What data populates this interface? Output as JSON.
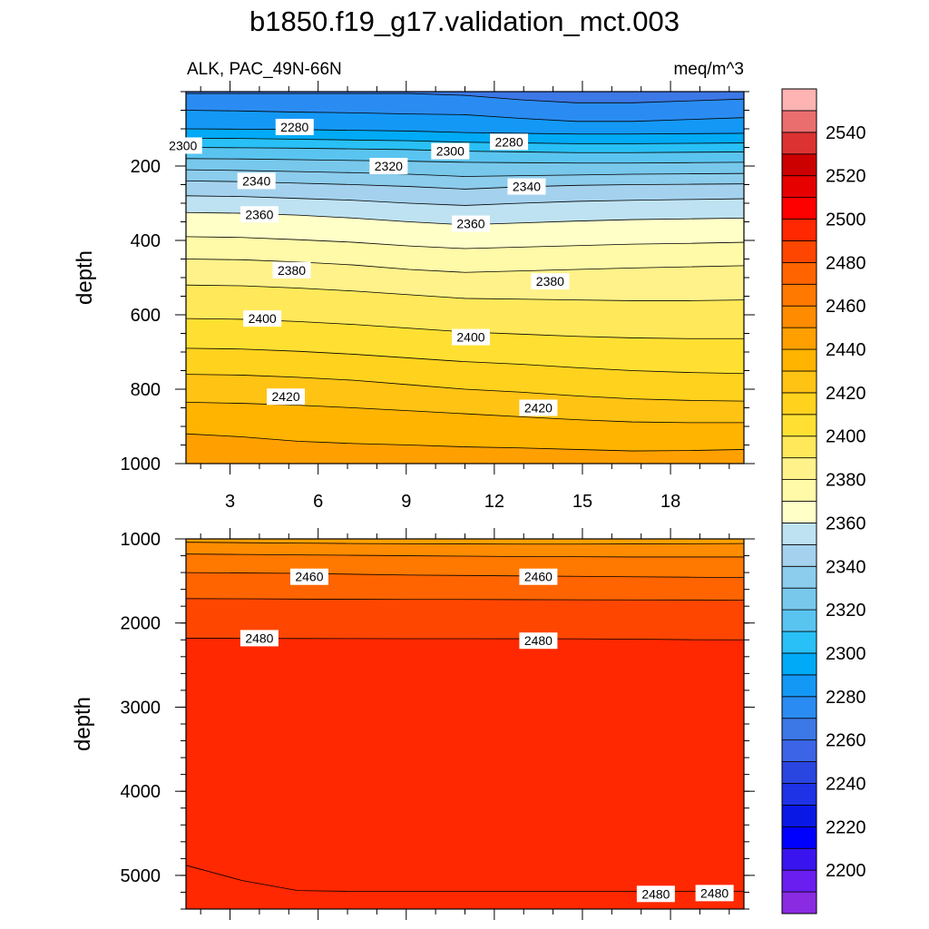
{
  "chart_data": {
    "type": "contour",
    "title": "b1850.f19_g17.validation_mct.003",
    "subtitle_left": "ALK, PAC_49N-66N",
    "subtitle_right": "meq/m^3",
    "x_ticks": [
      "3",
      "6",
      "9",
      "12",
      "15",
      "18"
    ],
    "x_tick_values": [
      3,
      6,
      9,
      12,
      15,
      18
    ],
    "x_range": [
      1.5,
      20.5
    ],
    "ylabel": "depth",
    "levels": [
      2190,
      2200,
      2210,
      2220,
      2230,
      2240,
      2250,
      2260,
      2270,
      2280,
      2290,
      2300,
      2310,
      2320,
      2330,
      2340,
      2350,
      2360,
      2370,
      2380,
      2390,
      2400,
      2410,
      2420,
      2430,
      2440,
      2450,
      2460,
      2470,
      2480,
      2490,
      2500,
      2510,
      2520,
      2530,
      2540,
      2550,
      2560
    ],
    "colors": [
      "#8a2be2",
      "#6a1ef0",
      "#3a14ee",
      "#0000ff",
      "#0a18e6",
      "#1e32e6",
      "#2a46e0",
      "#3c64e6",
      "#3c78e6",
      "#2a8cf2",
      "#1498f6",
      "#00aaf6",
      "#28c0f6",
      "#5ac4f0",
      "#78c8ec",
      "#8cccec",
      "#a4d2ee",
      "#bee2f2",
      "#ffffc8",
      "#fffaa8",
      "#fff28a",
      "#ffe85a",
      "#ffe032",
      "#ffd21e",
      "#ffc314",
      "#ffb400",
      "#ffa000",
      "#ff8c00",
      "#ff7800",
      "#ff6400",
      "#ff4600",
      "#ff2800",
      "#ff0000",
      "#e60000",
      "#cd0000",
      "#dc3232",
      "#eb6e6e",
      "#ffb4b4"
    ],
    "colorbar_labels": [
      "2200",
      "2220",
      "2240",
      "2260",
      "2280",
      "2300",
      "2320",
      "2340",
      "2360",
      "2380",
      "2400",
      "2420",
      "2440",
      "2460",
      "2480",
      "2500",
      "2520",
      "2540"
    ],
    "panels": [
      {
        "name": "upper",
        "y_range": [
          0,
          1000
        ],
        "y_ticks": [
          "200",
          "400",
          "600",
          "800",
          "1000"
        ],
        "y_tick_values": [
          200,
          400,
          600,
          800,
          1000
        ],
        "contours": [
          {
            "level": 2270,
            "depths": [
              5,
              5,
              5,
              5,
              5,
              10,
              22,
              30,
              30,
              25,
              20
            ]
          },
          {
            "level": 2280,
            "depths": [
              50,
              52,
              55,
              57,
              60,
              62,
              72,
              80,
              80,
              75,
              70
            ]
          },
          {
            "level": 2290,
            "depths": [
              100,
              101,
              102,
              104,
              106,
              110,
              112,
              114,
              114,
              113,
              112
            ]
          },
          {
            "level": 2300,
            "depths": [
              125,
              126,
              128,
              130,
              132,
              136,
              138,
              140,
              140,
              139,
              138
            ]
          },
          {
            "level": 2310,
            "depths": [
              150,
              151,
              152,
              154,
              156,
              160,
              162,
              164,
              164,
              163,
              162
            ]
          },
          {
            "level": 2320,
            "depths": [
              180,
              181,
              183,
              185,
              187,
              190,
              191,
              192,
              192,
              191,
              190
            ]
          },
          {
            "level": 2330,
            "depths": [
              210,
              212,
              215,
              218,
              222,
              228,
              226,
              224,
              222,
              221,
              220
            ]
          },
          {
            "level": 2340,
            "depths": [
              240,
              242,
              246,
              250,
              255,
              262,
              256,
              252,
              250,
              249,
              248
            ]
          },
          {
            "level": 2350,
            "depths": [
              280,
              282,
              287,
              292,
              300,
              306,
              300,
              295,
              292,
              290,
              288
            ]
          },
          {
            "level": 2360,
            "depths": [
              325,
              327,
              332,
              340,
              350,
              358,
              353,
              348,
              344,
              342,
              340
            ]
          },
          {
            "level": 2370,
            "depths": [
              390,
              392,
              398,
              405,
              415,
              422,
              418,
              414,
              410,
              408,
              405
            ]
          },
          {
            "level": 2380,
            "depths": [
              450,
              452,
              458,
              466,
              478,
              486,
              482,
              478,
              474,
              471,
              468
            ]
          },
          {
            "level": 2390,
            "depths": [
              520,
              522,
              528,
              536,
              546,
              556,
              558,
              560,
              562,
              562,
              560
            ]
          },
          {
            "level": 2400,
            "depths": [
              610,
              612,
              618,
              626,
              636,
              646,
              652,
              658,
              662,
              664,
              664
            ]
          },
          {
            "level": 2410,
            "depths": [
              690,
              692,
              698,
              706,
              716,
              726,
              733,
              742,
              750,
              755,
              758
            ]
          },
          {
            "level": 2420,
            "depths": [
              760,
              762,
              768,
              776,
              788,
              800,
              808,
              818,
              826,
              830,
              832
            ]
          },
          {
            "level": 2430,
            "depths": [
              835,
              838,
              843,
              850,
              858,
              866,
              874,
              882,
              888,
              890,
              890
            ]
          },
          {
            "level": 2440,
            "depths": [
              920,
              928,
              940,
              946,
              950,
              955,
              958,
              962,
              966,
              965,
              962
            ]
          }
        ],
        "contour_labels": [
          {
            "text": "2280",
            "x": 5.2,
            "depth": 95
          },
          {
            "text": "2300",
            "x": 1.4,
            "depth": 145
          },
          {
            "text": "2300",
            "x": 10.5,
            "depth": 160
          },
          {
            "text": "2280",
            "x": 12.5,
            "depth": 135
          },
          {
            "text": "2320",
            "x": 8.4,
            "depth": 200
          },
          {
            "text": "2340",
            "x": 3.9,
            "depth": 240
          },
          {
            "text": "2340",
            "x": 13.1,
            "depth": 255
          },
          {
            "text": "2360",
            "x": 4.0,
            "depth": 330
          },
          {
            "text": "2360",
            "x": 11.2,
            "depth": 355
          },
          {
            "text": "2380",
            "x": 5.1,
            "depth": 480
          },
          {
            "text": "2380",
            "x": 13.9,
            "depth": 510
          },
          {
            "text": "2400",
            "x": 4.1,
            "depth": 610
          },
          {
            "text": "2400",
            "x": 11.2,
            "depth": 660
          },
          {
            "text": "2420",
            "x": 4.9,
            "depth": 820
          },
          {
            "text": "2420",
            "x": 13.5,
            "depth": 850
          }
        ]
      },
      {
        "name": "lower",
        "y_range": [
          1000,
          5400
        ],
        "y_ticks": [
          "1000",
          "2000",
          "3000",
          "4000",
          "5000"
        ],
        "y_tick_values": [
          1000,
          2000,
          3000,
          4000,
          5000
        ],
        "contours": [
          {
            "level": 2450,
            "depths": [
              1040,
              1045,
              1050,
              1055,
              1058,
              1060,
              1062,
              1062,
              1060,
              1058,
              1055
            ]
          },
          {
            "level": 2460,
            "depths": [
              1180,
              1185,
              1190,
              1195,
              1200,
              1205,
              1210,
              1212,
              1215,
              1215,
              1215
            ]
          },
          {
            "level": 2470,
            "depths": [
              1400,
              1405,
              1410,
              1420,
              1430,
              1435,
              1440,
              1445,
              1450,
              1455,
              1460
            ]
          },
          {
            "level": 2480,
            "depths": [
              1710,
              1712,
              1715,
              1718,
              1720,
              1720,
              1722,
              1724,
              1725,
              1726,
              1728
            ]
          },
          {
            "level": 2490,
            "depths": [
              2180,
              2182,
              2184,
              2185,
              2186,
              2186,
              2187,
              2188,
              2192,
              2198,
              2200
            ]
          },
          {
            "level": 2495,
            "depths": [
              4880,
              5060,
              5180,
              5190,
              5190,
              5190,
              5190,
              5190,
              5190,
              5190,
              5190
            ]
          }
        ],
        "contour_labels": [
          {
            "text": "2460",
            "x": 5.7,
            "depth": 1450
          },
          {
            "text": "2460",
            "x": 13.5,
            "depth": 1450
          },
          {
            "text": "2480",
            "x": 4.0,
            "depth": 2180
          },
          {
            "text": "2480",
            "x": 13.5,
            "depth": 2210
          },
          {
            "text": "2480",
            "x": 17.5,
            "depth": 5220
          },
          {
            "text": "2480",
            "x": 19.5,
            "depth": 5210
          }
        ]
      }
    ]
  }
}
